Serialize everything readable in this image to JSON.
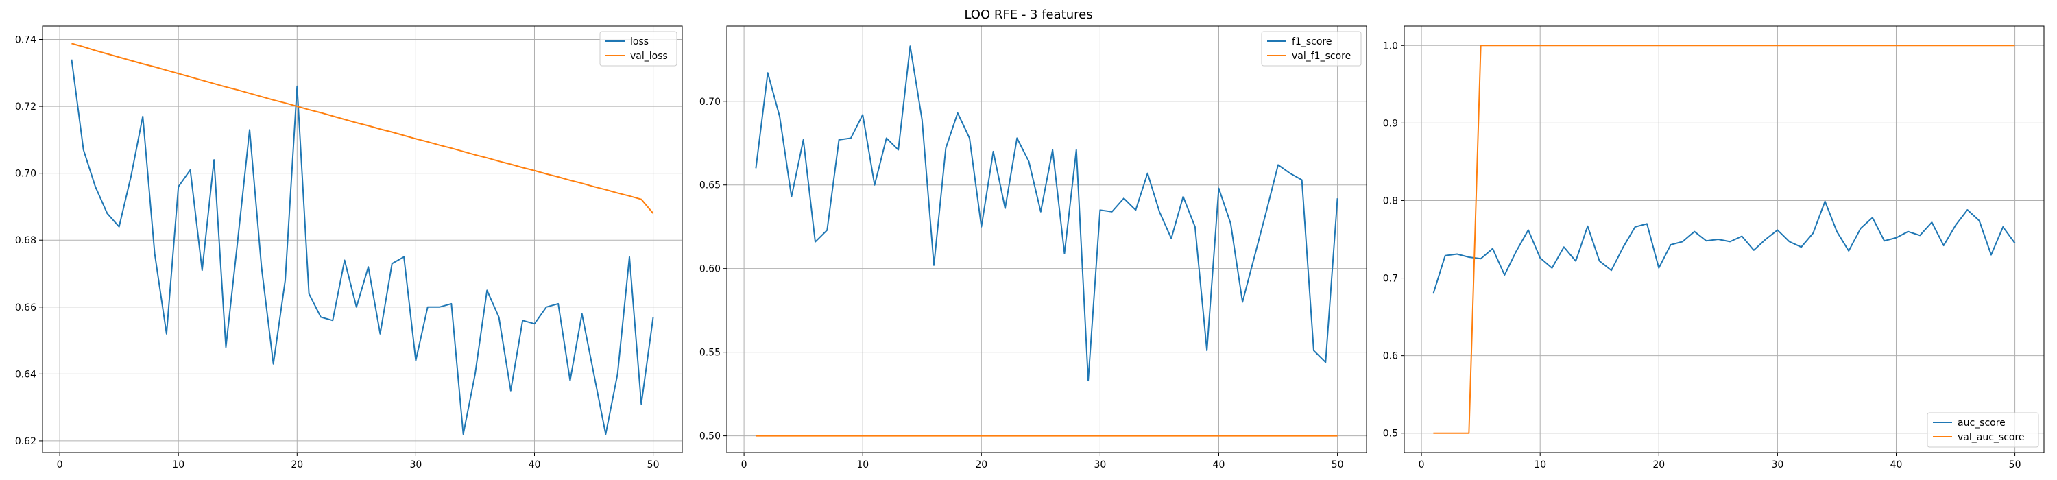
{
  "figure": {
    "title": "LOO RFE - 3 features"
  },
  "chart_data": [
    {
      "type": "line",
      "title": "",
      "xlabel": "",
      "ylabel": "",
      "xlim": [
        -1.45,
        52.45
      ],
      "ylim": [
        0.6165,
        0.744
      ],
      "xticks": [
        0,
        10,
        20,
        30,
        40,
        50
      ],
      "yticks": [
        0.62,
        0.64,
        0.66,
        0.68,
        0.7,
        0.72,
        0.74
      ],
      "ytick_decimals": 2,
      "grid": true,
      "legend_position": "upper right",
      "x": [
        1,
        2,
        3,
        4,
        5,
        6,
        7,
        8,
        9,
        10,
        11,
        12,
        13,
        14,
        15,
        16,
        17,
        18,
        19,
        20,
        21,
        22,
        23,
        24,
        25,
        26,
        27,
        28,
        29,
        30,
        31,
        32,
        33,
        34,
        35,
        36,
        37,
        38,
        39,
        40,
        41,
        42,
        43,
        44,
        45,
        46,
        47,
        48,
        49,
        50
      ],
      "series": [
        {
          "name": "loss",
          "color": "#1f77b4",
          "values": [
            0.734,
            0.707,
            0.696,
            0.688,
            0.684,
            0.699,
            0.717,
            0.676,
            0.652,
            0.696,
            0.701,
            0.671,
            0.704,
            0.648,
            0.68,
            0.713,
            0.672,
            0.643,
            0.668,
            0.726,
            0.664,
            0.657,
            0.656,
            0.674,
            0.66,
            0.672,
            0.652,
            0.673,
            0.675,
            0.644,
            0.66,
            0.66,
            0.661,
            0.622,
            0.64,
            0.665,
            0.657,
            0.635,
            0.656,
            0.655,
            0.66,
            0.661,
            0.638,
            0.658,
            0.64,
            0.622,
            0.64,
            0.675,
            0.631,
            0.657
          ]
        },
        {
          "name": "val_loss",
          "color": "#ff7f0e",
          "values": [
            0.7388,
            0.7378,
            0.7367,
            0.7357,
            0.7347,
            0.7337,
            0.7327,
            0.7318,
            0.7308,
            0.7298,
            0.7288,
            0.7278,
            0.7268,
            0.7258,
            0.7249,
            0.7239,
            0.7229,
            0.7219,
            0.721,
            0.72,
            0.719,
            0.7181,
            0.7171,
            0.7161,
            0.7151,
            0.7142,
            0.7132,
            0.7123,
            0.7113,
            0.7103,
            0.7094,
            0.7084,
            0.7075,
            0.7065,
            0.7055,
            0.7046,
            0.7036,
            0.7027,
            0.7017,
            0.7008,
            0.6998,
            0.6989,
            0.6979,
            0.697,
            0.696,
            0.6951,
            0.6941,
            0.6932,
            0.6922,
            0.688
          ]
        }
      ]
    },
    {
      "type": "line",
      "title": "",
      "xlabel": "",
      "ylabel": "",
      "xlim": [
        -1.45,
        52.45
      ],
      "ylim": [
        0.49,
        0.745
      ],
      "xticks": [
        0,
        10,
        20,
        30,
        40,
        50
      ],
      "yticks": [
        0.5,
        0.55,
        0.6,
        0.65,
        0.7
      ],
      "ytick_decimals": 2,
      "grid": true,
      "legend_position": "upper right",
      "x": [
        1,
        2,
        3,
        4,
        5,
        6,
        7,
        8,
        9,
        10,
        11,
        12,
        13,
        14,
        15,
        16,
        17,
        18,
        19,
        20,
        21,
        22,
        23,
        24,
        25,
        26,
        27,
        28,
        29,
        30,
        31,
        32,
        33,
        34,
        35,
        36,
        37,
        38,
        39,
        40,
        41,
        42,
        43,
        44,
        45,
        46,
        47,
        48,
        49,
        50
      ],
      "series": [
        {
          "name": "f1_score",
          "color": "#1f77b4",
          "values": [
            0.66,
            0.717,
            0.691,
            0.643,
            0.677,
            0.616,
            0.623,
            0.677,
            0.678,
            0.692,
            0.65,
            0.678,
            0.671,
            0.733,
            0.689,
            0.602,
            0.672,
            0.693,
            0.678,
            0.625,
            0.67,
            0.636,
            0.678,
            0.664,
            0.634,
            0.671,
            0.609,
            0.671,
            0.533,
            0.635,
            0.634,
            0.642,
            0.635,
            0.657,
            0.634,
            0.618,
            0.643,
            0.625,
            0.551,
            0.648,
            0.627,
            0.58,
            0.607,
            0.634,
            0.662,
            0.657,
            0.653,
            0.551,
            0.544,
            0.642
          ]
        },
        {
          "name": "val_f1_score",
          "color": "#ff7f0e",
          "values": [
            0.5,
            0.5,
            0.5,
            0.5,
            0.5,
            0.5,
            0.5,
            0.5,
            0.5,
            0.5,
            0.5,
            0.5,
            0.5,
            0.5,
            0.5,
            0.5,
            0.5,
            0.5,
            0.5,
            0.5,
            0.5,
            0.5,
            0.5,
            0.5,
            0.5,
            0.5,
            0.5,
            0.5,
            0.5,
            0.5,
            0.5,
            0.5,
            0.5,
            0.5,
            0.5,
            0.5,
            0.5,
            0.5,
            0.5,
            0.5,
            0.5,
            0.5,
            0.5,
            0.5,
            0.5,
            0.5,
            0.5,
            0.5,
            0.5,
            0.5
          ]
        }
      ]
    },
    {
      "type": "line",
      "title": "",
      "xlabel": "",
      "ylabel": "",
      "xlim": [
        -1.45,
        52.45
      ],
      "ylim": [
        0.475,
        1.025
      ],
      "xticks": [
        0,
        10,
        20,
        30,
        40,
        50
      ],
      "yticks": [
        0.5,
        0.6,
        0.7,
        0.8,
        0.9,
        1.0
      ],
      "ytick_decimals": 1,
      "grid": true,
      "legend_position": "lower right",
      "x": [
        1,
        2,
        3,
        4,
        5,
        6,
        7,
        8,
        9,
        10,
        11,
        12,
        13,
        14,
        15,
        16,
        17,
        18,
        19,
        20,
        21,
        22,
        23,
        24,
        25,
        26,
        27,
        28,
        29,
        30,
        31,
        32,
        33,
        34,
        35,
        36,
        37,
        38,
        39,
        40,
        41,
        42,
        43,
        44,
        45,
        46,
        47,
        48,
        49,
        50
      ],
      "series": [
        {
          "name": "auc_score",
          "color": "#1f77b4",
          "values": [
            0.68,
            0.729,
            0.731,
            0.727,
            0.725,
            0.738,
            0.704,
            0.735,
            0.762,
            0.726,
            0.713,
            0.74,
            0.722,
            0.767,
            0.722,
            0.71,
            0.74,
            0.766,
            0.77,
            0.713,
            0.743,
            0.747,
            0.76,
            0.748,
            0.75,
            0.747,
            0.754,
            0.736,
            0.75,
            0.762,
            0.747,
            0.74,
            0.758,
            0.799,
            0.76,
            0.735,
            0.764,
            0.778,
            0.748,
            0.752,
            0.76,
            0.755,
            0.772,
            0.742,
            0.768,
            0.788,
            0.774,
            0.73,
            0.766,
            0.745
          ]
        },
        {
          "name": "val_auc_score",
          "color": "#ff7f0e",
          "values": [
            0.5,
            0.5,
            0.5,
            0.5,
            1.0,
            1.0,
            1.0,
            1.0,
            1.0,
            1.0,
            1.0,
            1.0,
            1.0,
            1.0,
            1.0,
            1.0,
            1.0,
            1.0,
            1.0,
            1.0,
            1.0,
            1.0,
            1.0,
            1.0,
            1.0,
            1.0,
            1.0,
            1.0,
            1.0,
            1.0,
            1.0,
            1.0,
            1.0,
            1.0,
            1.0,
            1.0,
            1.0,
            1.0,
            1.0,
            1.0,
            1.0,
            1.0,
            1.0,
            1.0,
            1.0,
            1.0,
            1.0,
            1.0,
            1.0,
            1.0
          ]
        }
      ]
    }
  ]
}
